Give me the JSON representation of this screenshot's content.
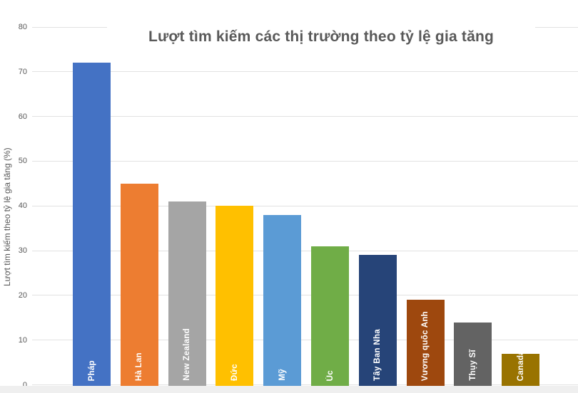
{
  "chart_data": {
    "type": "bar",
    "title": "Lượt tìm kiếm các thị trường theo tỷ lệ gia tăng",
    "ylabel": "Lượt tìm kiếm theo tỷ lệ gia tăng (%)",
    "xlabel": "",
    "categories": [
      "Pháp",
      "Hà Lan",
      "New Zealand",
      "Đức",
      "Mỹ",
      "Úc",
      "Tây Ban Nha",
      "Vương quốc Anh",
      "Thụy Sĩ",
      "Canada"
    ],
    "values": [
      72,
      45,
      41,
      40,
      38,
      31,
      29,
      19,
      14,
      7
    ],
    "bar_colors": [
      "#4472C4",
      "#ED7D31",
      "#A5A5A5",
      "#FFC000",
      "#5B9BD5",
      "#70AD47",
      "#264478",
      "#9E480E",
      "#636363",
      "#997300"
    ],
    "ylim": [
      0,
      80
    ],
    "ytick_step": 10,
    "ytick_labels": [
      "0",
      "10",
      "20",
      "30",
      "40",
      "50",
      "60",
      "70",
      "80"
    ],
    "grid": "horizontal",
    "grid_color": "#E2E2E2",
    "title_color": "#595959",
    "axis_text_color": "#595959",
    "bar_label_color": "#FFFFFF",
    "bar_label_position": "inside-base-rotated",
    "legend": "none",
    "background": "#FFFFFF"
  }
}
